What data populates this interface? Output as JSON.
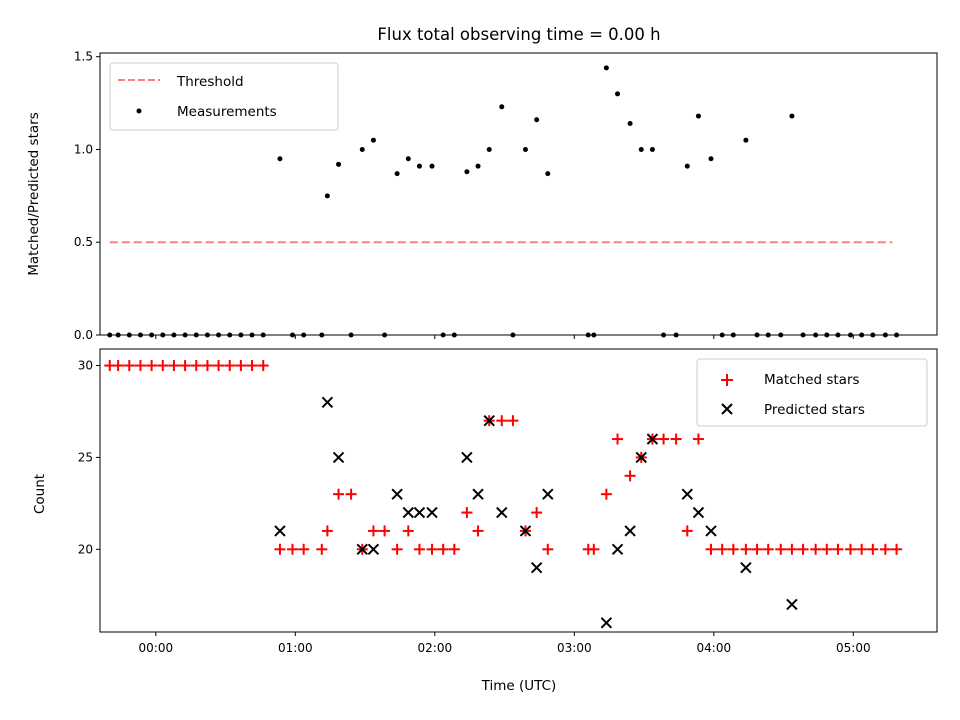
{
  "chart_data": [
    {
      "type": "scatter",
      "title": "Flux total observing time = 0.00 h",
      "xlabel": "",
      "ylabel": "Matched/Predicted stars",
      "xlim": [
        -0.4,
        5.6
      ],
      "ylim": [
        0,
        1.52
      ],
      "yticks": [
        0.0,
        0.5,
        1.0,
        1.5
      ],
      "ytick_labels": [
        "0.0",
        "0.5",
        "1.0",
        "1.5"
      ],
      "legend_position": "top-left",
      "series": [
        {
          "name": "Threshold",
          "kind": "dashed-line",
          "color": "#ff7f7f",
          "x": [
            -0.33,
            5.28
          ],
          "y": [
            0.5,
            0.5
          ]
        },
        {
          "name": "Measurements",
          "kind": "dots",
          "color": "#000000",
          "points": [
            [
              -0.33,
              0
            ],
            [
              -0.27,
              0
            ],
            [
              -0.19,
              0
            ],
            [
              -0.11,
              0
            ],
            [
              -0.03,
              0
            ],
            [
              0.05,
              0
            ],
            [
              0.13,
              0
            ],
            [
              0.21,
              0
            ],
            [
              0.29,
              0
            ],
            [
              0.37,
              0
            ],
            [
              0.45,
              0
            ],
            [
              0.53,
              0
            ],
            [
              0.61,
              0
            ],
            [
              0.69,
              0
            ],
            [
              0.77,
              0
            ],
            [
              0.89,
              0.95
            ],
            [
              0.98,
              0
            ],
            [
              1.06,
              0
            ],
            [
              1.19,
              0
            ],
            [
              1.23,
              0.75
            ],
            [
              1.31,
              0.92
            ],
            [
              1.4,
              0
            ],
            [
              1.48,
              1.0
            ],
            [
              1.56,
              1.05
            ],
            [
              1.64,
              0
            ],
            [
              1.73,
              0.87
            ],
            [
              1.81,
              0.95
            ],
            [
              1.89,
              0.91
            ],
            [
              1.98,
              0.91
            ],
            [
              2.06,
              0
            ],
            [
              2.14,
              0
            ],
            [
              2.23,
              0.88
            ],
            [
              2.31,
              0.91
            ],
            [
              2.39,
              1.0
            ],
            [
              2.48,
              1.23
            ],
            [
              2.56,
              0
            ],
            [
              2.65,
              1.0
            ],
            [
              2.73,
              1.16
            ],
            [
              2.81,
              0.87
            ],
            [
              3.1,
              0
            ],
            [
              3.14,
              0
            ],
            [
              3.23,
              1.44
            ],
            [
              3.31,
              1.3
            ],
            [
              3.4,
              1.14
            ],
            [
              3.48,
              1.0
            ],
            [
              3.56,
              1.0
            ],
            [
              3.64,
              0
            ],
            [
              3.73,
              0
            ],
            [
              3.81,
              0.91
            ],
            [
              3.89,
              1.18
            ],
            [
              3.98,
              0.95
            ],
            [
              4.06,
              0
            ],
            [
              4.14,
              0
            ],
            [
              4.23,
              1.05
            ],
            [
              4.31,
              0
            ],
            [
              4.39,
              0
            ],
            [
              4.48,
              0
            ],
            [
              4.56,
              1.18
            ],
            [
              4.64,
              0
            ],
            [
              4.73,
              0
            ],
            [
              4.81,
              0
            ],
            [
              4.89,
              0
            ],
            [
              4.98,
              0
            ],
            [
              5.06,
              0
            ],
            [
              5.14,
              0
            ],
            [
              5.23,
              0
            ],
            [
              5.31,
              0
            ]
          ]
        }
      ]
    },
    {
      "type": "scatter",
      "title": "",
      "xlabel": "Time (UTC)",
      "ylabel": "Count",
      "xlim": [
        -0.4,
        5.6
      ],
      "ylim": [
        15.5,
        30.9
      ],
      "yticks": [
        20,
        25,
        30
      ],
      "ytick_labels": [
        "20",
        "25",
        "30"
      ],
      "xticks": [
        0,
        1,
        2,
        3,
        4,
        5
      ],
      "xtick_labels": [
        "00:00",
        "01:00",
        "02:00",
        "03:00",
        "04:00",
        "05:00"
      ],
      "legend_position": "top-right",
      "series": [
        {
          "name": "Matched stars",
          "marker": "plus",
          "color": "#ff0000",
          "points": [
            [
              -0.33,
              30
            ],
            [
              -0.27,
              30
            ],
            [
              -0.19,
              30
            ],
            [
              -0.11,
              30
            ],
            [
              -0.03,
              30
            ],
            [
              0.05,
              30
            ],
            [
              0.13,
              30
            ],
            [
              0.21,
              30
            ],
            [
              0.29,
              30
            ],
            [
              0.37,
              30
            ],
            [
              0.45,
              30
            ],
            [
              0.53,
              30
            ],
            [
              0.61,
              30
            ],
            [
              0.69,
              30
            ],
            [
              0.77,
              30
            ],
            [
              0.89,
              20
            ],
            [
              0.98,
              20
            ],
            [
              1.06,
              20
            ],
            [
              1.19,
              20
            ],
            [
              1.23,
              21
            ],
            [
              1.31,
              23
            ],
            [
              1.4,
              23
            ],
            [
              1.48,
              20
            ],
            [
              1.56,
              21
            ],
            [
              1.64,
              21
            ],
            [
              1.73,
              20
            ],
            [
              1.81,
              21
            ],
            [
              1.89,
              20
            ],
            [
              1.98,
              20
            ],
            [
              2.06,
              20
            ],
            [
              2.14,
              20
            ],
            [
              2.23,
              22
            ],
            [
              2.31,
              21
            ],
            [
              2.39,
              27
            ],
            [
              2.48,
              27
            ],
            [
              2.56,
              27
            ],
            [
              2.65,
              21
            ],
            [
              2.73,
              22
            ],
            [
              2.81,
              20
            ],
            [
              3.1,
              20
            ],
            [
              3.14,
              20
            ],
            [
              3.23,
              23
            ],
            [
              3.31,
              26
            ],
            [
              3.4,
              24
            ],
            [
              3.48,
              25
            ],
            [
              3.56,
              26
            ],
            [
              3.64,
              26
            ],
            [
              3.73,
              26
            ],
            [
              3.81,
              21
            ],
            [
              3.89,
              26
            ],
            [
              3.98,
              20
            ],
            [
              4.06,
              20
            ],
            [
              4.14,
              20
            ],
            [
              4.23,
              20
            ],
            [
              4.31,
              20
            ],
            [
              4.39,
              20
            ],
            [
              4.48,
              20
            ],
            [
              4.56,
              20
            ],
            [
              4.64,
              20
            ],
            [
              4.73,
              20
            ],
            [
              4.81,
              20
            ],
            [
              4.89,
              20
            ],
            [
              4.98,
              20
            ],
            [
              5.06,
              20
            ],
            [
              5.14,
              20
            ],
            [
              5.23,
              20
            ],
            [
              5.31,
              20
            ]
          ]
        },
        {
          "name": "Predicted stars",
          "marker": "x",
          "color": "#000000",
          "points": [
            [
              0.89,
              21
            ],
            [
              1.23,
              28
            ],
            [
              1.31,
              25
            ],
            [
              1.48,
              20
            ],
            [
              1.56,
              20
            ],
            [
              1.73,
              23
            ],
            [
              1.81,
              22
            ],
            [
              1.89,
              22
            ],
            [
              1.98,
              22
            ],
            [
              2.23,
              25
            ],
            [
              2.31,
              23
            ],
            [
              2.39,
              27
            ],
            [
              2.48,
              22
            ],
            [
              2.65,
              21
            ],
            [
              2.73,
              19
            ],
            [
              2.81,
              23
            ],
            [
              3.23,
              16
            ],
            [
              3.31,
              20
            ],
            [
              3.4,
              21
            ],
            [
              3.48,
              25
            ],
            [
              3.56,
              26
            ],
            [
              3.81,
              23
            ],
            [
              3.89,
              22
            ],
            [
              3.98,
              21
            ],
            [
              4.23,
              19
            ],
            [
              4.56,
              17
            ]
          ]
        }
      ]
    }
  ]
}
